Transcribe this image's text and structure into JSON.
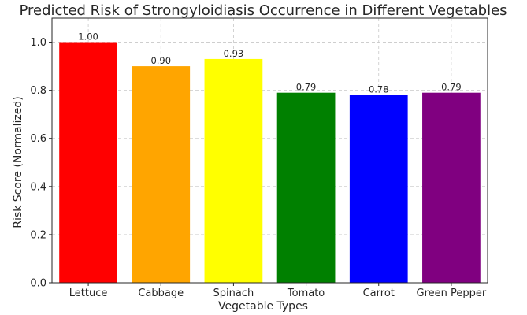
{
  "chart_data": {
    "type": "bar",
    "title": "Predicted Risk of Strongyloidiasis Occurrence in Different Vegetables",
    "xlabel": "Vegetable Types",
    "ylabel": "Risk Score (Normalized)",
    "categories": [
      "Lettuce",
      "Cabbage",
      "Spinach",
      "Tomato",
      "Carrot",
      "Green Pepper"
    ],
    "values": [
      1.0,
      0.9,
      0.93,
      0.79,
      0.78,
      0.79
    ],
    "value_labels": [
      "1.00",
      "0.90",
      "0.93",
      "0.79",
      "0.78",
      "0.79"
    ],
    "colors": [
      "#ff0000",
      "#ffa500",
      "#ffff00",
      "#008000",
      "#0000ff",
      "#800080"
    ],
    "ylim": [
      0,
      1.1
    ],
    "yticks": [
      0.0,
      0.2,
      0.4,
      0.6,
      0.8,
      1.0
    ],
    "ytick_labels": [
      "0.0",
      "0.2",
      "0.4",
      "0.6",
      "0.8",
      "1.0"
    ],
    "grid": true
  }
}
